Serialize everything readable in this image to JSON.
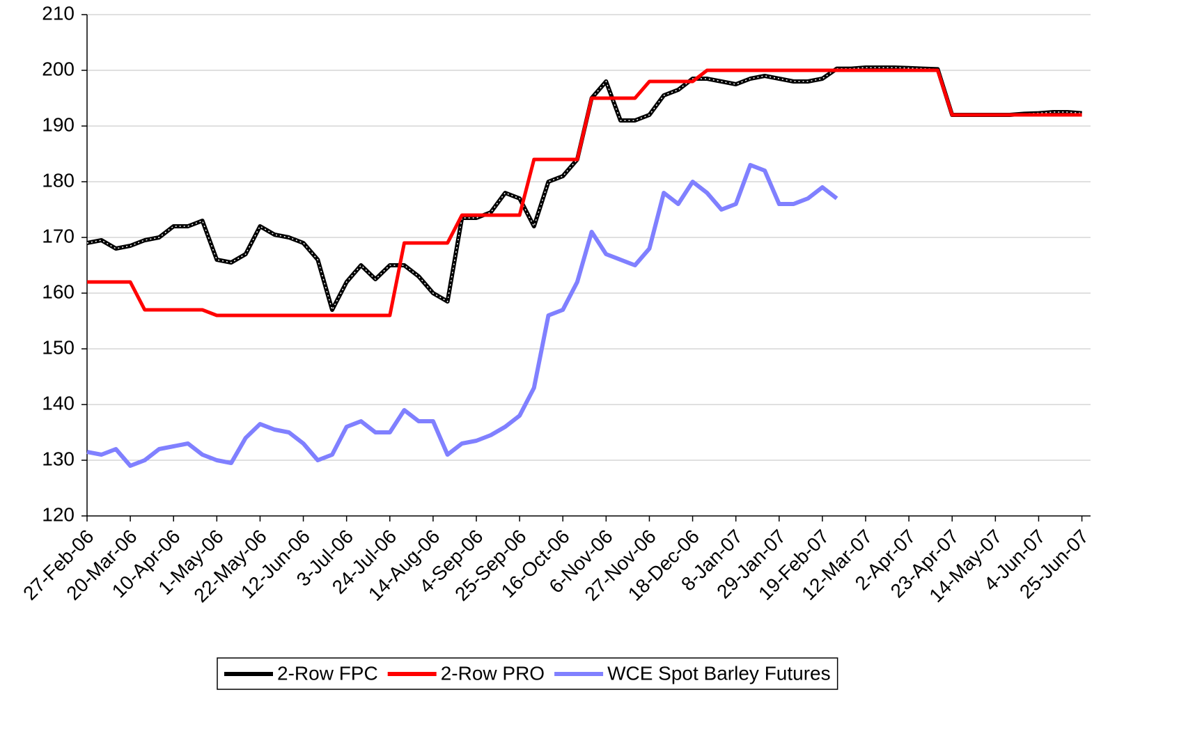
{
  "chart_data": {
    "type": "line",
    "categories": [
      "27-Feb-06",
      null,
      null,
      "20-Mar-06",
      null,
      null,
      "10-Apr-06",
      null,
      null,
      "1-May-06",
      null,
      null,
      "22-May-06",
      null,
      null,
      "12-Jun-06",
      null,
      null,
      "3-Jul-06",
      null,
      null,
      "24-Jul-06",
      null,
      null,
      "14-Aug-06",
      null,
      null,
      "4-Sep-06",
      null,
      null,
      "25-Sep-06",
      null,
      null,
      "16-Oct-06",
      null,
      null,
      "6-Nov-06",
      null,
      null,
      "27-Nov-06",
      null,
      null,
      "18-Dec-06",
      null,
      null,
      "8-Jan-07",
      null,
      null,
      "29-Jan-07",
      null,
      null,
      "19-Feb-07",
      null,
      null,
      "12-Mar-07",
      null,
      null,
      "2-Apr-07",
      null,
      null,
      "23-Apr-07",
      null,
      null,
      "14-May-07",
      null,
      null,
      "4-Jun-07",
      null,
      null,
      "25-Jun-07"
    ],
    "series": [
      {
        "name": "2-Row FPC",
        "color": "#000000",
        "values": [
          169,
          169.5,
          168,
          168.5,
          169.5,
          170,
          172,
          172,
          173,
          166,
          165.5,
          167,
          172,
          170.5,
          170,
          169,
          166,
          157,
          162,
          165,
          162.5,
          165,
          165,
          163,
          160,
          158.5,
          173.5,
          173.5,
          174.5,
          178,
          177,
          172,
          180,
          181,
          184,
          195,
          198,
          191,
          191,
          192,
          195.5,
          196.5,
          198.5,
          198.5,
          198,
          197.5,
          198.5,
          199,
          198.5,
          198,
          198,
          198.5,
          200.3,
          200.3,
          200.5,
          200.5,
          200.5,
          200.4,
          200.3,
          200.2,
          192,
          192,
          192,
          192,
          192,
          192.2,
          192.3,
          192.5,
          192.5,
          192.3
        ]
      },
      {
        "name": "2-Row PRO",
        "color": "#ff0000",
        "values": [
          162,
          162,
          162,
          162,
          157,
          157,
          157,
          157,
          157,
          156,
          156,
          156,
          156,
          156,
          156,
          156,
          156,
          156,
          156,
          156,
          156,
          156,
          169,
          169,
          169,
          169,
          174,
          174,
          174,
          174,
          174,
          184,
          184,
          184,
          184,
          195,
          195,
          195,
          195,
          198,
          198,
          198,
          198,
          200,
          200,
          200,
          200,
          200,
          200,
          200,
          200,
          200,
          200,
          200,
          200,
          200,
          200,
          200,
          200,
          200,
          192,
          192,
          192,
          192,
          192,
          192,
          192,
          192,
          192,
          192
        ]
      },
      {
        "name": "WCE Spot Barley Futures",
        "color": "#8080ff",
        "values": [
          131.5,
          131,
          132,
          129,
          130,
          132,
          132.5,
          133,
          131,
          130,
          129.5,
          134,
          136.5,
          135.5,
          135,
          133,
          130,
          131,
          136,
          137,
          135,
          135,
          139,
          137,
          137,
          131,
          133,
          133.5,
          134.5,
          136,
          138,
          143,
          156,
          157,
          162,
          171,
          167,
          166,
          165,
          168,
          178,
          176,
          180,
          178,
          175,
          176,
          183,
          182,
          176,
          176,
          177,
          179,
          177,
          null,
          null,
          null,
          null,
          null,
          null,
          null,
          null,
          null,
          null,
          null,
          null,
          null,
          null,
          null,
          null,
          null
        ]
      }
    ],
    "ylim": [
      120,
      210
    ],
    "yticks": [
      120,
      130,
      140,
      150,
      160,
      170,
      180,
      190,
      200,
      210
    ],
    "grid": true,
    "legend": "bottom"
  }
}
